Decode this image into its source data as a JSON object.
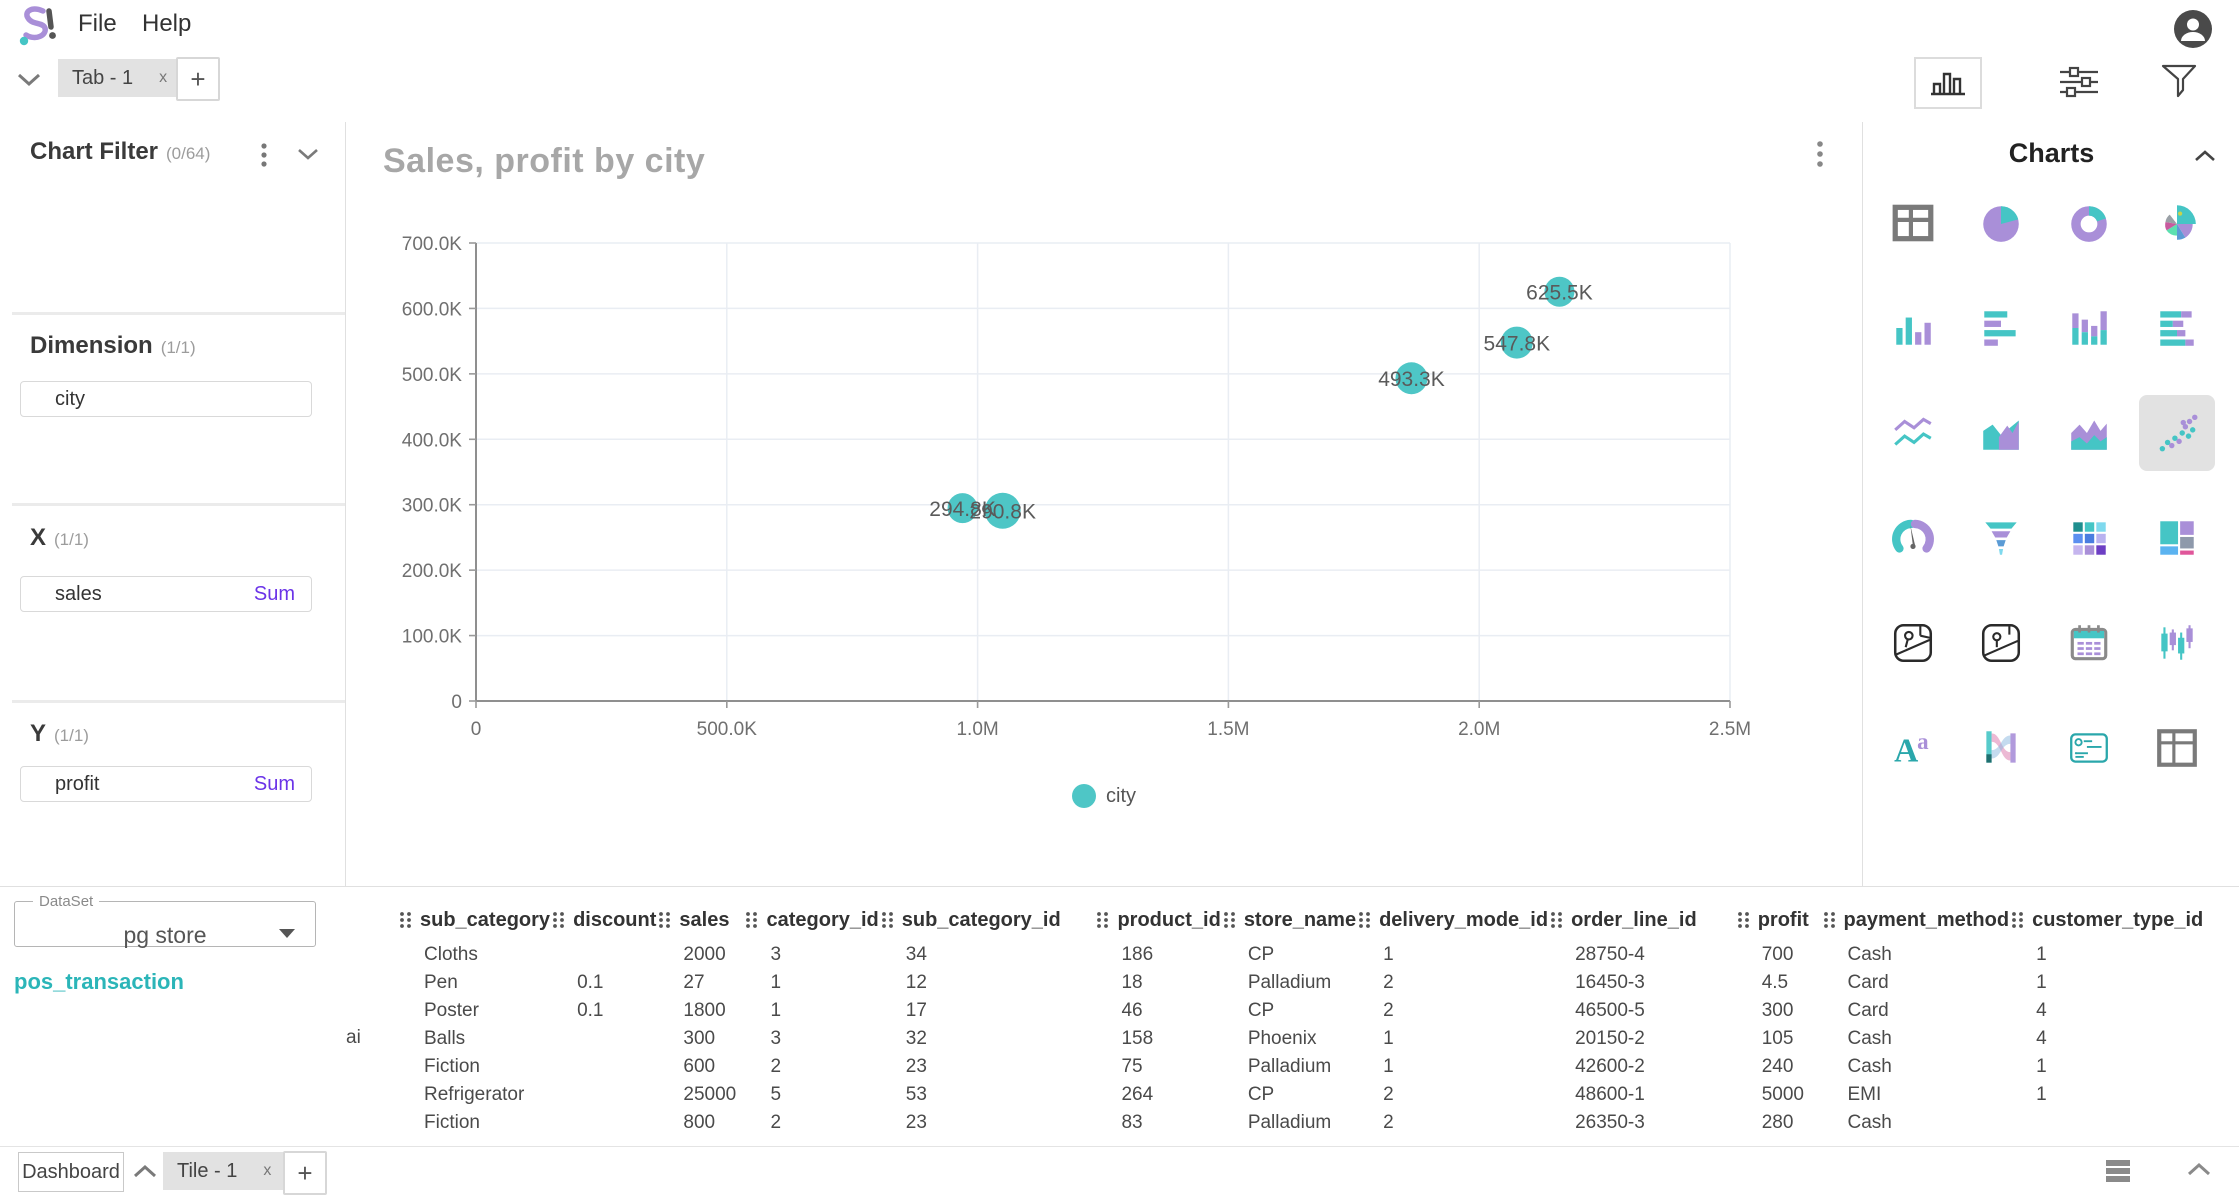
{
  "app": {
    "menus": [
      "File",
      "Help"
    ],
    "logo_icon": "app-logo",
    "avatar_icon": "user-avatar"
  },
  "tab_bar": {
    "collapse_icon": "chevron-down",
    "tab_label": "Tab - 1",
    "tab_close": "x",
    "add_button": "+",
    "tools": [
      {
        "icon": "column-chart-icon",
        "active": true
      },
      {
        "icon": "sliders-icon",
        "active": false
      },
      {
        "icon": "funnel-icon",
        "active": false
      }
    ]
  },
  "left_panel": {
    "chart_filter": {
      "title": "Chart Filter",
      "count": "(0/64)",
      "menu_icon": "kebab-menu",
      "collapse_icon": "chevron-down"
    },
    "dimension": {
      "title": "Dimension",
      "count": "(1/1)",
      "fields": [
        {
          "name": "city"
        }
      ]
    },
    "x_axis": {
      "title": "X",
      "count": "(1/1)",
      "fields": [
        {
          "name": "sales",
          "aggregation": "Sum"
        }
      ]
    },
    "y_axis": {
      "title": "Y",
      "count": "(1/1)",
      "fields": [
        {
          "name": "profit",
          "aggregation": "Sum"
        }
      ]
    }
  },
  "chart": {
    "title": "Sales, profit by city",
    "menu_icon": "kebab-menu",
    "legend_label": "city"
  },
  "chart_data": {
    "type": "scatter",
    "title": "Sales, profit by city",
    "x_field": "sales (Sum)",
    "y_field": "profit (Sum)",
    "series_label": "city",
    "xlim": [
      0,
      2500000
    ],
    "ylim": [
      0,
      700000
    ],
    "x_ticks": [
      {
        "v": 0,
        "label": "0"
      },
      {
        "v": 500000,
        "label": "500.0K"
      },
      {
        "v": 1000000,
        "label": "1.0M"
      },
      {
        "v": 1500000,
        "label": "1.5M"
      },
      {
        "v": 2000000,
        "label": "2.0M"
      },
      {
        "v": 2500000,
        "label": "2.5M"
      }
    ],
    "y_ticks": [
      {
        "v": 0,
        "label": "0"
      },
      {
        "v": 100000,
        "label": "100.0K"
      },
      {
        "v": 200000,
        "label": "200.0K"
      },
      {
        "v": 300000,
        "label": "300.0K"
      },
      {
        "v": 400000,
        "label": "400.0K"
      },
      {
        "v": 500000,
        "label": "500.0K"
      },
      {
        "v": 600000,
        "label": "600.0K"
      },
      {
        "v": 700000,
        "label": "700.0K"
      }
    ],
    "points": [
      {
        "sales": 970000,
        "profit": 294800,
        "label": "294.8K",
        "r": 15
      },
      {
        "sales": 1050000,
        "profit": 290800,
        "label": "290.8K",
        "r": 18
      },
      {
        "sales": 1865000,
        "profit": 493300,
        "label": "493.3K",
        "r": 16
      },
      {
        "sales": 2075000,
        "profit": 547800,
        "label": "547.8K",
        "r": 16
      },
      {
        "sales": 2160000,
        "profit": 625500,
        "label": "625.5K",
        "r": 15
      }
    ],
    "grid": true,
    "legend_position": "bottom",
    "point_color": "#4ec6c6"
  },
  "charts_panel": {
    "title": "Charts",
    "collapse_icon": "chevron-up",
    "icons": [
      {
        "name": "table-chart"
      },
      {
        "name": "pie-chart"
      },
      {
        "name": "donut-chart"
      },
      {
        "name": "rose-chart"
      },
      {
        "name": "column-chart"
      },
      {
        "name": "bar-chart"
      },
      {
        "name": "stacked-column-chart"
      },
      {
        "name": "stacked-bar-chart"
      },
      {
        "name": "line-chart"
      },
      {
        "name": "area-chart"
      },
      {
        "name": "stacked-area-chart"
      },
      {
        "name": "scatter-chart",
        "selected": true
      },
      {
        "name": "gauge-chart"
      },
      {
        "name": "funnel-chart"
      },
      {
        "name": "heatmap-chart"
      },
      {
        "name": "treemap-chart"
      },
      {
        "name": "map-chart"
      },
      {
        "name": "map-alt-chart"
      },
      {
        "name": "calendar-chart"
      },
      {
        "name": "candlestick-chart"
      },
      {
        "name": "text-chart"
      },
      {
        "name": "sankey-chart"
      },
      {
        "name": "card-chart"
      },
      {
        "name": "pivot-table-chart"
      }
    ]
  },
  "dataset": {
    "label": "DataSet",
    "selected": "pg store",
    "dropdown_icon": "chevron-down",
    "table_link": "pos_transaction"
  },
  "data_table": {
    "clipped_fragment": "ai",
    "columns": [
      "sub_category",
      "discount",
      "sales",
      "category_id",
      "sub_category_id",
      "product_id",
      "store_name",
      "delivery_mode_id",
      "order_line_id",
      "profit",
      "payment_method",
      "customer_type_id"
    ],
    "rows": [
      [
        "Cloths",
        "",
        "2000",
        "3",
        "34",
        "186",
        "CP",
        "1",
        "28750-4",
        "700",
        "Cash",
        "1"
      ],
      [
        "Pen",
        "0.1",
        "27",
        "1",
        "12",
        "18",
        "Palladium",
        "2",
        "16450-3",
        "4.5",
        "Card",
        "1"
      ],
      [
        "Poster",
        "0.1",
        "1800",
        "1",
        "17",
        "46",
        "CP",
        "2",
        "46500-5",
        "300",
        "Card",
        "4"
      ],
      [
        "Balls",
        "",
        "300",
        "3",
        "32",
        "158",
        "Phoenix",
        "1",
        "20150-2",
        "105",
        "Cash",
        "4"
      ],
      [
        "Fiction",
        "",
        "600",
        "2",
        "23",
        "75",
        "Palladium",
        "1",
        "42600-2",
        "240",
        "Cash",
        "1"
      ],
      [
        "Refrigerator",
        "",
        "25000",
        "5",
        "53",
        "264",
        "CP",
        "2",
        "48600-1",
        "5000",
        "EMI",
        "1"
      ],
      [
        "Fiction",
        "",
        "800",
        "2",
        "23",
        "83",
        "Palladium",
        "2",
        "26350-3",
        "280",
        "Cash",
        ""
      ]
    ]
  },
  "bottom_bar": {
    "dashboard_button": "Dashboard",
    "collapse_icon": "chevron-up",
    "tile_label": "Tile - 1",
    "tile_close": "x",
    "add_button": "+",
    "menu_icon": "hamburger-menu",
    "panel_collapse_icon": "chevron-up"
  },
  "colors": {
    "accent_teal": "#47c4c6",
    "accent_purple": "#a98fd8",
    "sum_purple": "#6b34e8",
    "link_teal": "#2bb5b8",
    "point_teal": "#4ec6c6",
    "tab_active_bg": "#e2e2e2",
    "grid_line": "#e9edf3",
    "axis_line": "#8f8f8f"
  }
}
